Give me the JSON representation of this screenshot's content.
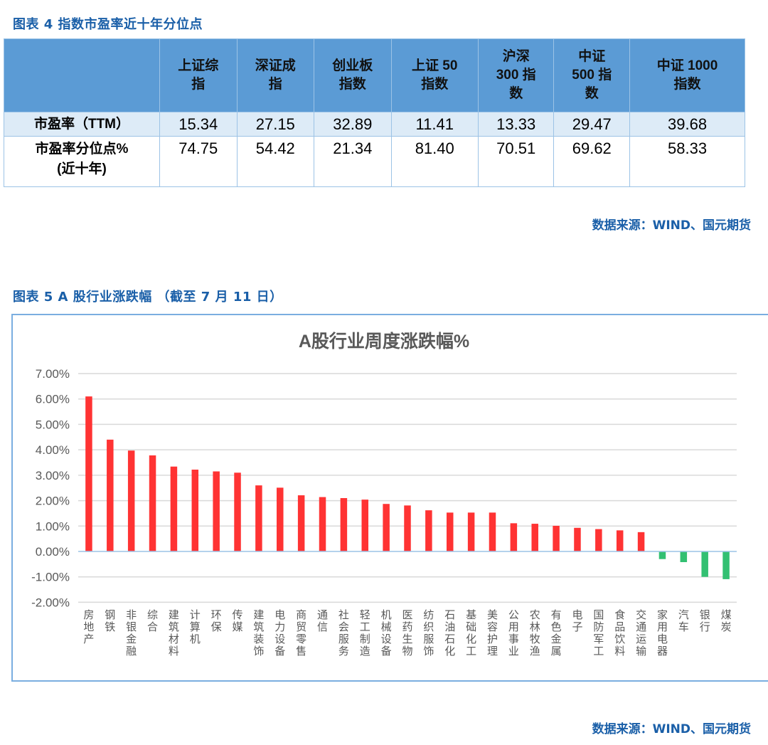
{
  "figure4": {
    "title": "图表 4 指数市盈率近十年分位点",
    "table": {
      "columns": [
        "上证综\n指",
        "深证成\n指",
        "创业板\n指数",
        "上证 50\n指数",
        "沪深\n300 指\n数",
        "中证\n500 指\n数",
        "中证 1000\n指数"
      ],
      "rows": [
        {
          "label": "市盈率（TTM）",
          "values": [
            "15.34",
            "27.15",
            "32.89",
            "11.41",
            "13.33",
            "29.47",
            "39.68"
          ]
        },
        {
          "label": "市盈率分位点%\n(近十年)",
          "values": [
            "74.75",
            "54.42",
            "21.34",
            "81.40",
            "70.51",
            "69.62",
            "58.33"
          ]
        }
      ]
    },
    "source": "数据来源：WIND、国元期货"
  },
  "figure5": {
    "title": "图表 5 A 股行业涨跌幅 （截至 7 月 11 日）",
    "source": "数据来源：WIND、国元期货"
  },
  "colors": {
    "title_blue": "#1a5fa8",
    "header_blue": "#5b9bd5",
    "row_light_blue": "#ddebf7",
    "bar_positive": "#ff3333",
    "bar_negative": "#33c072",
    "gridline": "#d9d9d9",
    "zero_line": "#9cc3e6"
  },
  "chart_data": {
    "type": "bar",
    "title": "A股行业周度涨跌幅%",
    "xlabel": "",
    "ylabel": "",
    "ylim": [
      -2.0,
      7.0
    ],
    "yticks": [
      "7.00%",
      "6.00%",
      "5.00%",
      "4.00%",
      "3.00%",
      "2.00%",
      "1.00%",
      "0.00%",
      "-1.00%",
      "-2.00%"
    ],
    "grid": true,
    "legend": "none",
    "categories": [
      "房地产",
      "钢铁",
      "非银金融",
      "综合",
      "建筑材料",
      "计算机",
      "环保",
      "传媒",
      "建筑装饰",
      "电力设备",
      "商贸零售",
      "通信",
      "社会服务",
      "轻工制造",
      "机械设备",
      "医药生物",
      "纺织服饰",
      "石油石化",
      "基础化工",
      "美容护理",
      "公用事业",
      "农林牧渔",
      "有色金属",
      "电子",
      "国防军工",
      "食品饮料",
      "交通运输",
      "家用电器",
      "汽车",
      "银行",
      "煤炭"
    ],
    "values": [
      6.1,
      4.4,
      3.97,
      3.78,
      3.34,
      3.22,
      3.15,
      3.1,
      2.6,
      2.51,
      2.21,
      2.14,
      2.1,
      2.04,
      1.87,
      1.81,
      1.62,
      1.53,
      1.53,
      1.53,
      1.11,
      1.09,
      1.01,
      0.93,
      0.88,
      0.83,
      0.76,
      -0.3,
      -0.42,
      -1.0,
      -1.09
    ]
  }
}
